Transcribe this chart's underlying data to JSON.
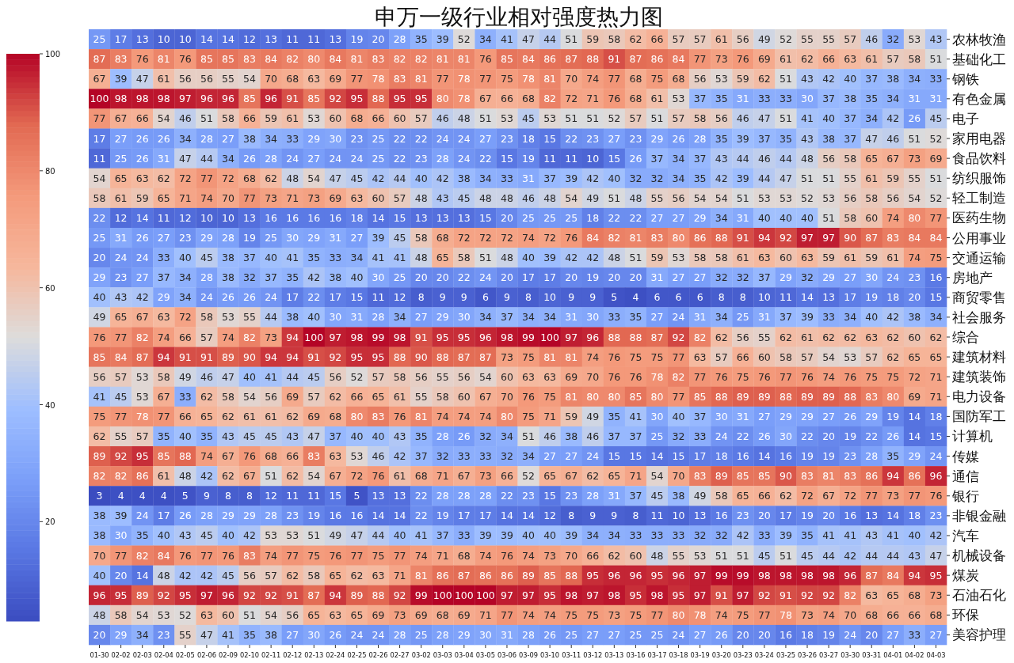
{
  "chart_data": {
    "type": "heatmap",
    "title": "申万一级行业相对强度热力图",
    "categories": [
      "01-30",
      "02-02",
      "02-03",
      "02-04",
      "02-05",
      "02-06",
      "02-09",
      "02-10",
      "02-11",
      "02-12",
      "02-13",
      "02-24",
      "02-25",
      "02-26",
      "02-27",
      "03-02",
      "03-03",
      "03-04",
      "03-05",
      "03-06",
      "03-09",
      "03-10",
      "03-11",
      "03-12",
      "03-13",
      "03-16",
      "03-17",
      "03-18",
      "03-19",
      "03-20",
      "03-23",
      "03-24",
      "03-25",
      "03-26",
      "03-27",
      "03-30",
      "03-31",
      "04-01",
      "04-02",
      "04-03"
    ],
    "y_categories": [
      "农林牧渔",
      "基础化工",
      "钢铁",
      "有色金属",
      "电子",
      "家用电器",
      "食品饮料",
      "纺织服饰",
      "轻工制造",
      "医药生物",
      "公用事业",
      "交通运输",
      "房地产",
      "商贸零售",
      "社会服务",
      "综合",
      "建筑材料",
      "建筑装饰",
      "电力设备",
      "国防军工",
      "计算机",
      "传媒",
      "通信",
      "银行",
      "非银金融",
      "汽车",
      "机械设备",
      "煤炭",
      "石油石化",
      "环保",
      "美容护理"
    ],
    "cells": [
      [
        25,
        17,
        13,
        10,
        10,
        14,
        14,
        12,
        13,
        11,
        11,
        13,
        19,
        20,
        28,
        35,
        39,
        52,
        34,
        41,
        47,
        44,
        51,
        59,
        58,
        62,
        66,
        57,
        57,
        61,
        56,
        49,
        52,
        55,
        55,
        57,
        46,
        32,
        53,
        43
      ],
      [
        87,
        83,
        76,
        81,
        76,
        85,
        85,
        83,
        84,
        82,
        80,
        84,
        81,
        83,
        82,
        82,
        81,
        81,
        76,
        85,
        84,
        86,
        87,
        88,
        91,
        87,
        86,
        84,
        77,
        73,
        76,
        69,
        61,
        62,
        66,
        63,
        61,
        57,
        58,
        51
      ],
      [
        67,
        39,
        47,
        61,
        56,
        56,
        55,
        54,
        70,
        68,
        63,
        69,
        77,
        78,
        83,
        81,
        77,
        78,
        77,
        75,
        78,
        81,
        70,
        74,
        77,
        68,
        75,
        68,
        56,
        53,
        59,
        62,
        51,
        43,
        42,
        40,
        37,
        38,
        34,
        33
      ],
      [
        100,
        98,
        98,
        98,
        97,
        96,
        96,
        85,
        96,
        91,
        85,
        92,
        95,
        88,
        95,
        95,
        80,
        78,
        67,
        66,
        68,
        82,
        72,
        71,
        76,
        68,
        61,
        53,
        37,
        35,
        31,
        33,
        33,
        30,
        37,
        38,
        35,
        34,
        31,
        31
      ],
      [
        77,
        67,
        66,
        54,
        46,
        51,
        58,
        66,
        59,
        61,
        53,
        60,
        68,
        66,
        60,
        57,
        46,
        48,
        51,
        53,
        45,
        53,
        51,
        51,
        52,
        57,
        51,
        57,
        58,
        56,
        46,
        47,
        51,
        41,
        40,
        37,
        34,
        42,
        26,
        45
      ],
      [
        17,
        27,
        26,
        26,
        34,
        28,
        27,
        38,
        34,
        33,
        29,
        30,
        23,
        25,
        22,
        22,
        24,
        24,
        27,
        23,
        18,
        15,
        22,
        23,
        27,
        23,
        29,
        26,
        28,
        35,
        39,
        37,
        35,
        43,
        38,
        37,
        47,
        46,
        51,
        52
      ],
      [
        11,
        25,
        26,
        31,
        47,
        44,
        34,
        26,
        28,
        24,
        27,
        24,
        24,
        25,
        22,
        23,
        28,
        24,
        22,
        15,
        19,
        11,
        11,
        10,
        15,
        26,
        37,
        34,
        37,
        43,
        44,
        46,
        44,
        48,
        56,
        58,
        65,
        67,
        73,
        69
      ],
      [
        54,
        65,
        63,
        62,
        72,
        77,
        72,
        68,
        62,
        48,
        54,
        47,
        45,
        42,
        44,
        40,
        42,
        38,
        34,
        33,
        31,
        37,
        39,
        42,
        40,
        32,
        32,
        34,
        35,
        42,
        39,
        44,
        47,
        51,
        51,
        55,
        61,
        59,
        55,
        51
      ],
      [
        58,
        61,
        59,
        65,
        71,
        74,
        70,
        77,
        73,
        71,
        73,
        69,
        63,
        60,
        57,
        48,
        43,
        45,
        48,
        48,
        46,
        48,
        54,
        49,
        51,
        48,
        55,
        56,
        54,
        54,
        51,
        53,
        53,
        52,
        53,
        56,
        58,
        56,
        54,
        52
      ],
      [
        22,
        12,
        14,
        11,
        12,
        10,
        10,
        13,
        16,
        16,
        16,
        16,
        18,
        14,
        15,
        13,
        13,
        13,
        15,
        20,
        25,
        25,
        25,
        18,
        22,
        22,
        27,
        27,
        29,
        34,
        31,
        40,
        40,
        40,
        51,
        58,
        60,
        74,
        80,
        77
      ],
      [
        25,
        31,
        26,
        27,
        23,
        29,
        28,
        19,
        25,
        30,
        29,
        31,
        27,
        39,
        45,
        58,
        68,
        72,
        72,
        72,
        74,
        72,
        76,
        84,
        82,
        81,
        83,
        80,
        86,
        88,
        91,
        94,
        92,
        97,
        97,
        90,
        87,
        83,
        84,
        84
      ],
      [
        20,
        24,
        24,
        33,
        40,
        45,
        38,
        37,
        40,
        41,
        35,
        33,
        34,
        41,
        41,
        48,
        65,
        58,
        51,
        48,
        40,
        39,
        42,
        42,
        48,
        51,
        59,
        53,
        58,
        58,
        61,
        63,
        60,
        63,
        59,
        61,
        59,
        61,
        74,
        75
      ],
      [
        29,
        23,
        27,
        37,
        34,
        28,
        38,
        32,
        37,
        35,
        42,
        38,
        40,
        30,
        25,
        20,
        20,
        22,
        24,
        20,
        17,
        17,
        20,
        19,
        20,
        20,
        31,
        27,
        27,
        32,
        32,
        37,
        29,
        32,
        29,
        27,
        30,
        24,
        23,
        16
      ],
      [
        40,
        43,
        42,
        29,
        34,
        24,
        26,
        26,
        24,
        17,
        22,
        17,
        15,
        11,
        12,
        8,
        9,
        9,
        6,
        9,
        8,
        10,
        9,
        9,
        5,
        4,
        6,
        6,
        6,
        8,
        8,
        10,
        11,
        14,
        13,
        17,
        19,
        18,
        20,
        15
      ],
      [
        49,
        65,
        67,
        63,
        72,
        58,
        53,
        55,
        44,
        38,
        40,
        30,
        31,
        28,
        34,
        27,
        29,
        30,
        34,
        37,
        34,
        34,
        31,
        30,
        33,
        35,
        27,
        24,
        31,
        34,
        25,
        31,
        37,
        39,
        33,
        34,
        40,
        42,
        38,
        34
      ],
      [
        76,
        77,
        82,
        74,
        66,
        57,
        74,
        82,
        73,
        94,
        100,
        97,
        98,
        99,
        98,
        91,
        95,
        95,
        96,
        98,
        99,
        100,
        97,
        96,
        88,
        88,
        87,
        92,
        82,
        62,
        56,
        55,
        62,
        61,
        62,
        62,
        63,
        62,
        60,
        62
      ],
      [
        85,
        84,
        87,
        94,
        91,
        91,
        89,
        90,
        94,
        94,
        91,
        92,
        95,
        95,
        88,
        90,
        88,
        87,
        87,
        73,
        75,
        81,
        81,
        74,
        76,
        75,
        75,
        77,
        63,
        57,
        66,
        60,
        58,
        57,
        54,
        53,
        57,
        62,
        65,
        65
      ],
      [
        56,
        57,
        53,
        58,
        49,
        46,
        47,
        40,
        41,
        44,
        45,
        56,
        52,
        57,
        58,
        56,
        55,
        56,
        54,
        60,
        63,
        63,
        69,
        70,
        76,
        76,
        78,
        82,
        77,
        76,
        75,
        76,
        77,
        76,
        74,
        76,
        75,
        75,
        72,
        71
      ],
      [
        41,
        45,
        53,
        67,
        33,
        62,
        58,
        54,
        56,
        69,
        57,
        62,
        66,
        65,
        61,
        55,
        58,
        60,
        67,
        70,
        76,
        75,
        81,
        80,
        80,
        85,
        80,
        77,
        85,
        88,
        89,
        89,
        88,
        89,
        89,
        88,
        83,
        80,
        69,
        71
      ],
      [
        75,
        77,
        78,
        77,
        66,
        65,
        62,
        61,
        61,
        62,
        69,
        68,
        80,
        83,
        76,
        81,
        74,
        74,
        74,
        80,
        75,
        71,
        59,
        49,
        35,
        41,
        30,
        40,
        37,
        30,
        31,
        27,
        29,
        29,
        27,
        26,
        29,
        19,
        14,
        18
      ],
      [
        62,
        55,
        57,
        35,
        40,
        35,
        43,
        45,
        45,
        43,
        47,
        37,
        40,
        40,
        43,
        35,
        28,
        26,
        32,
        34,
        51,
        46,
        38,
        46,
        37,
        37,
        25,
        32,
        33,
        24,
        22,
        26,
        30,
        22,
        20,
        19,
        22,
        26,
        14,
        15
      ],
      [
        89,
        92,
        95,
        85,
        88,
        74,
        67,
        76,
        68,
        66,
        83,
        63,
        53,
        46,
        42,
        37,
        32,
        33,
        33,
        32,
        34,
        27,
        27,
        24,
        15,
        15,
        14,
        15,
        17,
        18,
        16,
        14,
        16,
        19,
        19,
        23,
        28,
        35,
        29,
        24
      ],
      [
        82,
        82,
        86,
        61,
        48,
        42,
        62,
        67,
        51,
        62,
        54,
        67,
        72,
        76,
        61,
        68,
        71,
        67,
        73,
        66,
        52,
        65,
        67,
        62,
        65,
        71,
        54,
        70,
        83,
        89,
        85,
        85,
        90,
        83,
        81,
        83,
        86,
        94,
        86,
        96
      ],
      [
        3,
        4,
        4,
        4,
        5,
        9,
        8,
        8,
        12,
        11,
        11,
        15,
        5,
        13,
        13,
        22,
        28,
        28,
        28,
        22,
        23,
        15,
        23,
        28,
        31,
        37,
        45,
        38,
        49,
        58,
        65,
        66,
        62,
        72,
        67,
        72,
        77,
        73,
        77,
        76
      ],
      [
        38,
        39,
        24,
        17,
        26,
        28,
        29,
        29,
        28,
        23,
        19,
        16,
        16,
        14,
        14,
        22,
        19,
        17,
        17,
        14,
        14,
        12,
        8,
        9,
        9,
        8,
        11,
        10,
        13,
        16,
        23,
        20,
        17,
        19,
        20,
        16,
        13,
        14,
        18,
        23
      ],
      [
        38,
        30,
        35,
        40,
        43,
        45,
        40,
        42,
        53,
        53,
        51,
        49,
        47,
        44,
        40,
        41,
        37,
        33,
        39,
        39,
        40,
        40,
        39,
        34,
        34,
        33,
        33,
        33,
        32,
        32,
        42,
        33,
        39,
        35,
        41,
        41,
        43,
        41,
        40,
        42
      ],
      [
        70,
        77,
        82,
        84,
        76,
        77,
        76,
        83,
        74,
        77,
        75,
        76,
        77,
        75,
        77,
        74,
        71,
        68,
        74,
        76,
        74,
        73,
        70,
        66,
        62,
        60,
        48,
        55,
        53,
        51,
        51,
        45,
        51,
        45,
        44,
        42,
        44,
        44,
        43,
        47
      ],
      [
        40,
        20,
        14,
        48,
        42,
        42,
        45,
        56,
        57,
        62,
        58,
        65,
        62,
        63,
        71,
        81,
        86,
        87,
        86,
        86,
        89,
        85,
        88,
        95,
        96,
        96,
        95,
        96,
        97,
        99,
        99,
        98,
        98,
        98,
        98,
        96,
        87,
        84,
        94,
        95
      ],
      [
        96,
        95,
        89,
        92,
        95,
        97,
        96,
        92,
        92,
        91,
        87,
        94,
        89,
        88,
        92,
        99,
        100,
        100,
        100,
        97,
        97,
        95,
        98,
        97,
        98,
        95,
        98,
        95,
        97,
        91,
        97,
        92,
        91,
        92,
        92,
        82,
        63,
        65,
        68,
        73
      ],
      [
        48,
        58,
        54,
        53,
        52,
        63,
        60,
        51,
        54,
        56,
        65,
        63,
        65,
        69,
        73,
        69,
        68,
        69,
        71,
        77,
        74,
        74,
        75,
        75,
        73,
        75,
        77,
        80,
        78,
        74,
        75,
        77,
        78,
        73,
        74,
        70,
        68,
        66,
        66,
        68
      ],
      [
        20,
        29,
        34,
        23,
        55,
        47,
        41,
        35,
        38,
        27,
        30,
        26,
        24,
        24,
        28,
        25,
        28,
        29,
        30,
        31,
        28,
        26,
        25,
        27,
        27,
        25,
        25,
        24,
        27,
        26,
        20,
        20,
        16,
        18,
        19,
        24,
        20,
        27,
        33,
        27
      ]
    ],
    "clim": [
      3,
      100
    ],
    "cticks": [
      20,
      40,
      60,
      80,
      100
    ],
    "data_labels": true
  }
}
